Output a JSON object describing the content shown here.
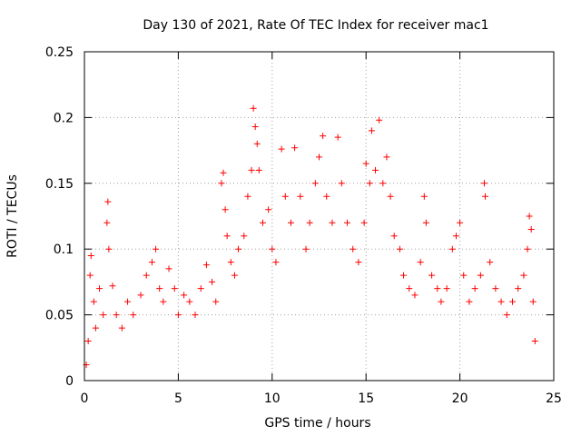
{
  "chart_data": {
    "type": "scatter",
    "title": "Day 130 of 2021, Rate Of TEC Index for receiver mac1",
    "xlabel": "GPS time / hours",
    "ylabel": "ROTI / TECUs",
    "xlim": [
      0,
      25
    ],
    "ylim": [
      0,
      0.25
    ],
    "x_ticks": [
      0,
      5,
      10,
      15,
      20,
      25
    ],
    "y_ticks": [
      0,
      0.05,
      0.1,
      0.15,
      0.2,
      0.25
    ],
    "x_tick_labels": [
      "0",
      "5",
      "10",
      "15",
      "20",
      "25"
    ],
    "y_tick_labels": [
      "0",
      "0.05",
      "0.1",
      "0.15",
      "0.2",
      "0.25"
    ],
    "grid": true,
    "marker": "plus",
    "marker_color": "#ff0000",
    "series": [
      {
        "points": [
          [
            0.1,
            0.012
          ],
          [
            0.2,
            0.03
          ],
          [
            0.3,
            0.08
          ],
          [
            0.35,
            0.095
          ],
          [
            0.5,
            0.06
          ],
          [
            0.6,
            0.04
          ],
          [
            0.8,
            0.07
          ],
          [
            1.0,
            0.05
          ],
          [
            1.2,
            0.12
          ],
          [
            1.25,
            0.136
          ],
          [
            1.3,
            0.1
          ],
          [
            1.5,
            0.072
          ],
          [
            1.7,
            0.05
          ],
          [
            2.0,
            0.04
          ],
          [
            2.3,
            0.06
          ],
          [
            2.6,
            0.05
          ],
          [
            3.0,
            0.065
          ],
          [
            3.3,
            0.08
          ],
          [
            3.6,
            0.09
          ],
          [
            3.8,
            0.1
          ],
          [
            4.0,
            0.07
          ],
          [
            4.2,
            0.06
          ],
          [
            4.5,
            0.085
          ],
          [
            4.8,
            0.07
          ],
          [
            5.0,
            0.05
          ],
          [
            5.3,
            0.065
          ],
          [
            5.6,
            0.06
          ],
          [
            5.9,
            0.05
          ],
          [
            6.2,
            0.07
          ],
          [
            6.5,
            0.088
          ],
          [
            6.8,
            0.075
          ],
          [
            7.0,
            0.06
          ],
          [
            7.3,
            0.15
          ],
          [
            7.4,
            0.158
          ],
          [
            7.5,
            0.13
          ],
          [
            7.6,
            0.11
          ],
          [
            7.8,
            0.09
          ],
          [
            8.0,
            0.08
          ],
          [
            8.2,
            0.1
          ],
          [
            8.5,
            0.11
          ],
          [
            8.7,
            0.14
          ],
          [
            8.9,
            0.16
          ],
          [
            9.0,
            0.207
          ],
          [
            9.1,
            0.193
          ],
          [
            9.2,
            0.18
          ],
          [
            9.3,
            0.16
          ],
          [
            9.5,
            0.12
          ],
          [
            9.8,
            0.13
          ],
          [
            10.0,
            0.1
          ],
          [
            10.2,
            0.09
          ],
          [
            10.5,
            0.176
          ],
          [
            10.7,
            0.14
          ],
          [
            11.0,
            0.12
          ],
          [
            11.2,
            0.177
          ],
          [
            11.5,
            0.14
          ],
          [
            11.8,
            0.1
          ],
          [
            12.0,
            0.12
          ],
          [
            12.3,
            0.15
          ],
          [
            12.5,
            0.17
          ],
          [
            12.7,
            0.186
          ],
          [
            12.9,
            0.14
          ],
          [
            13.2,
            0.12
          ],
          [
            13.5,
            0.185
          ],
          [
            13.7,
            0.15
          ],
          [
            14.0,
            0.12
          ],
          [
            14.3,
            0.1
          ],
          [
            14.6,
            0.09
          ],
          [
            14.9,
            0.12
          ],
          [
            15.0,
            0.165
          ],
          [
            15.2,
            0.15
          ],
          [
            15.3,
            0.19
          ],
          [
            15.5,
            0.16
          ],
          [
            15.7,
            0.198
          ],
          [
            15.9,
            0.15
          ],
          [
            16.1,
            0.17
          ],
          [
            16.3,
            0.14
          ],
          [
            16.5,
            0.11
          ],
          [
            16.8,
            0.1
          ],
          [
            17.0,
            0.08
          ],
          [
            17.3,
            0.07
          ],
          [
            17.6,
            0.065
          ],
          [
            17.9,
            0.09
          ],
          [
            18.1,
            0.14
          ],
          [
            18.2,
            0.12
          ],
          [
            18.5,
            0.08
          ],
          [
            18.8,
            0.07
          ],
          [
            19.0,
            0.06
          ],
          [
            19.3,
            0.07
          ],
          [
            19.6,
            0.1
          ],
          [
            19.8,
            0.11
          ],
          [
            20.0,
            0.12
          ],
          [
            20.2,
            0.08
          ],
          [
            20.5,
            0.06
          ],
          [
            20.8,
            0.07
          ],
          [
            21.1,
            0.08
          ],
          [
            21.3,
            0.15
          ],
          [
            21.35,
            0.14
          ],
          [
            21.6,
            0.09
          ],
          [
            21.9,
            0.07
          ],
          [
            22.2,
            0.06
          ],
          [
            22.5,
            0.05
          ],
          [
            22.8,
            0.06
          ],
          [
            23.1,
            0.07
          ],
          [
            23.4,
            0.08
          ],
          [
            23.6,
            0.1
          ],
          [
            23.7,
            0.125
          ],
          [
            23.8,
            0.115
          ],
          [
            23.9,
            0.06
          ],
          [
            24.0,
            0.03
          ]
        ]
      }
    ]
  }
}
